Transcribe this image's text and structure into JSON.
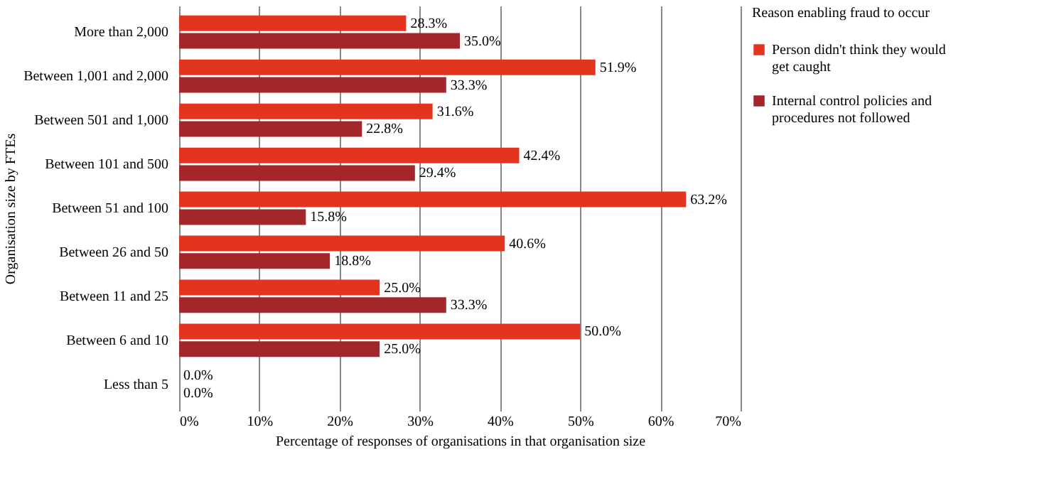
{
  "chart_data": {
    "type": "bar",
    "orientation": "horizontal",
    "ylabel": "Organisation size by FTEs",
    "xlabel": "Percentage of responses  of organisations in that organisation size",
    "legend_title": "Reason enabling fraud to occur",
    "legend": "right",
    "grid": "x",
    "categories": [
      "More than 2,000",
      "Between 1,001 and 2,000",
      "Between 501 and 1,000",
      "Between 101 and 500",
      "Between 51 and 100",
      "Between 26 and 50",
      "Between 11 and 25",
      "Between 6 and 10",
      "Less than 5"
    ],
    "xlim": [
      0,
      70
    ],
    "xticks": [
      {
        "value": 0,
        "label": "0%"
      },
      {
        "value": 10,
        "label": "10%"
      },
      {
        "value": 20,
        "label": "20%"
      },
      {
        "value": 30,
        "label": "30%"
      },
      {
        "value": 40,
        "label": "40%"
      },
      {
        "value": 50,
        "label": "50%"
      },
      {
        "value": 60,
        "label": "60%"
      },
      {
        "value": 70,
        "label": "70%"
      }
    ],
    "series": [
      {
        "name": "Person didn't think they would get caught",
        "color": "#e2341f",
        "values": [
          28.3,
          51.9,
          31.6,
          42.4,
          63.2,
          40.6,
          25.0,
          50.0,
          0.0
        ],
        "value_labels": [
          "28.3%",
          "51.9%",
          "31.6%",
          "42.4%",
          "63.2%",
          "40.6%",
          "25.0%",
          "50.0%",
          "0.0%"
        ]
      },
      {
        "name": "Internal control policies and procedures not followed",
        "color": "#a3262a",
        "values": [
          35.0,
          33.3,
          22.8,
          29.4,
          15.8,
          18.8,
          33.3,
          25.0,
          0.0
        ],
        "value_labels": [
          "35.0%",
          "33.3%",
          "22.8%",
          "29.4%",
          "15.8%",
          "18.8%",
          "33.3%",
          "25.0%",
          "0.0%"
        ]
      }
    ]
  }
}
